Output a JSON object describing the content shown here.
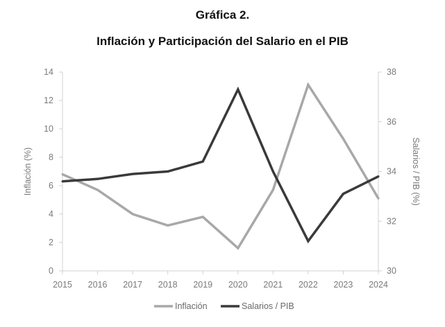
{
  "header": {
    "title": "Gráfica 2.",
    "subtitle": "Inflación y Participación del Salario en el PIB"
  },
  "chart_data": {
    "type": "line",
    "x": [
      "2015",
      "2016",
      "2017",
      "2018",
      "2019",
      "2020",
      "2021",
      "2022",
      "2023",
      "2024"
    ],
    "series": [
      {
        "name": "Inflación",
        "axis": "left",
        "color": "#a8a8a8",
        "values": [
          6.8,
          5.7,
          4.0,
          3.2,
          3.8,
          1.6,
          5.7,
          13.1,
          9.3,
          5.1
        ]
      },
      {
        "name": "Salarios / PIB",
        "axis": "right",
        "color": "#3a3a3a",
        "values": [
          33.6,
          33.7,
          33.9,
          34.0,
          34.4,
          37.3,
          34.0,
          31.2,
          33.1,
          33.8
        ]
      }
    ],
    "ylabel": "Inflación (%)",
    "ylim": [
      0,
      14
    ],
    "yticks": [
      "0",
      "2",
      "4",
      "6",
      "8",
      "10",
      "12",
      "14"
    ],
    "y2label": "Salarios / PIB (%)",
    "y2lim": [
      30,
      38
    ],
    "y2ticks": [
      "30",
      "32",
      "34",
      "36",
      "38"
    ],
    "grid": false,
    "legend_position": "bottom"
  }
}
